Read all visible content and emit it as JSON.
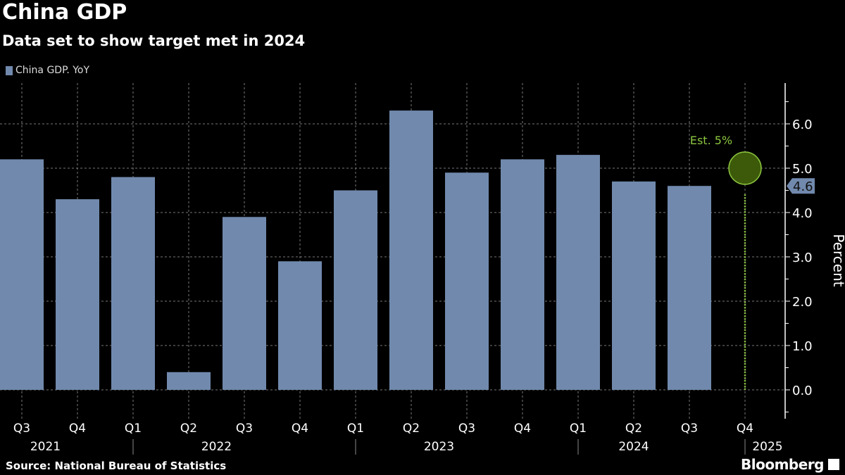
{
  "header": {
    "title": "China GDP",
    "subtitle": "Data set to show target met in 2024"
  },
  "footer": {
    "source": "Source: National Bureau of Statistics",
    "logo": "Bloomberg"
  },
  "colors": {
    "bar": "#7189ad",
    "estimate": "#8cc63f",
    "estimate_fill": "#3d5a0a",
    "background": "#000000"
  },
  "chart_data": {
    "type": "bar",
    "legend": [
      "China GDP. YoY"
    ],
    "legend_placement": "top-left",
    "categories": [
      "Q3",
      "Q4",
      "Q1",
      "Q2",
      "Q3",
      "Q4",
      "Q1",
      "Q2",
      "Q3",
      "Q4",
      "Q1",
      "Q2",
      "Q3",
      "Q4"
    ],
    "years": [
      {
        "label": "2021",
        "from": 0,
        "to": 1
      },
      {
        "label": "2022",
        "from": 2,
        "to": 5
      },
      {
        "label": "2023",
        "from": 6,
        "to": 9
      },
      {
        "label": "2024",
        "from": 10,
        "to": 12
      },
      {
        "label": "2025",
        "from": 13,
        "to": 13
      }
    ],
    "series": [
      {
        "name": "China GDP. YoY",
        "values": [
          5.2,
          4.3,
          4.8,
          0.4,
          3.9,
          2.9,
          4.5,
          6.3,
          4.9,
          5.2,
          5.3,
          4.7,
          4.6,
          null
        ]
      }
    ],
    "estimate": {
      "category_index": 13,
      "value": 5.0,
      "label": "Est. 5%"
    },
    "last_value_label": "4.6",
    "ylabel": "Percent",
    "yticks": [
      "0.0",
      "1.0",
      "2.0",
      "3.0",
      "4.0",
      "5.0",
      "6.0"
    ],
    "ylim": [
      -0.65,
      6.9
    ],
    "grid": true
  }
}
